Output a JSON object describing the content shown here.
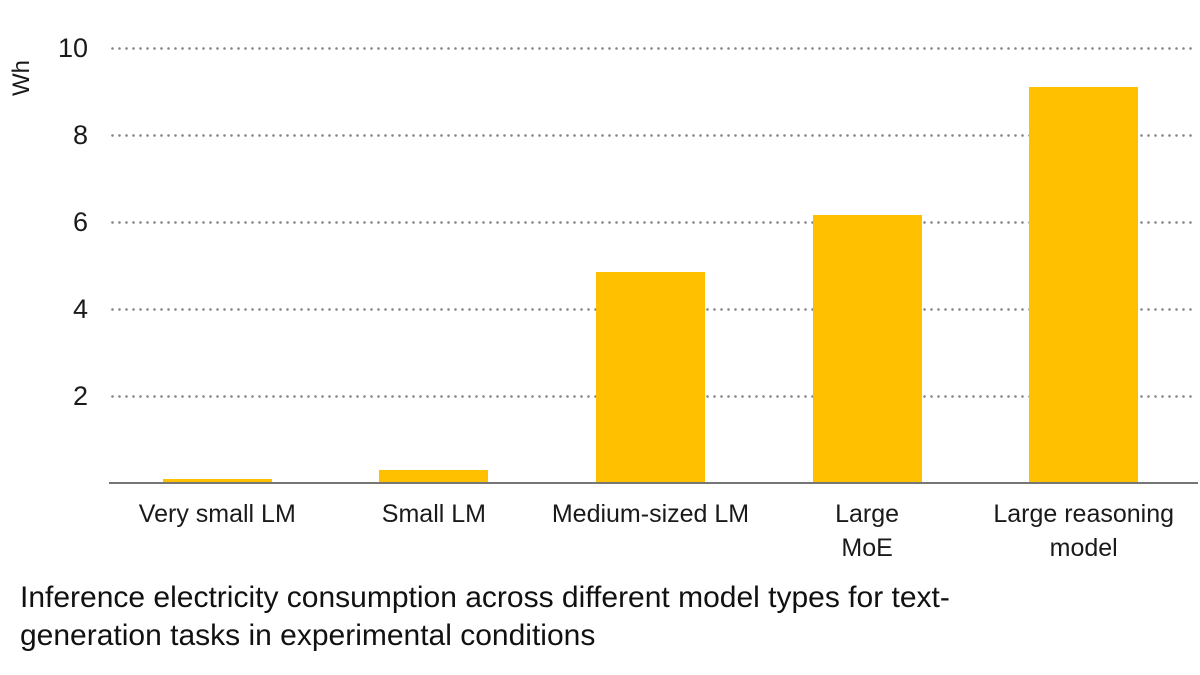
{
  "chart_data": {
    "type": "bar",
    "caption": "Inference electricity consumption across different model types for text-generation tasks in experimental conditions",
    "caption_lines": [
      "Inference electricity consumption across different model types for text-",
      "generation tasks in experimental conditions"
    ],
    "ylabel": "Wh",
    "categories": [
      "Very small LM",
      "Small LM",
      "Medium-sized LM",
      "Large MoE",
      "Large reasoning model"
    ],
    "category_label_lines": [
      [
        "Very small LM"
      ],
      [
        "Small LM"
      ],
      [
        "Medium-sized LM"
      ],
      [
        "Large",
        "MoE"
      ],
      [
        "Large reasoning",
        "model"
      ]
    ],
    "values": [
      0.1,
      0.3,
      4.85,
      6.15,
      9.1
    ],
    "yticks": [
      2,
      4,
      6,
      8,
      10
    ],
    "ylim": [
      0,
      10
    ],
    "grid": "horizontal dotted",
    "legend": "none",
    "colors": {
      "bar": "#FFC000",
      "gridline": "#868686",
      "axis": "#767676",
      "text": "#1a1a1a"
    }
  }
}
